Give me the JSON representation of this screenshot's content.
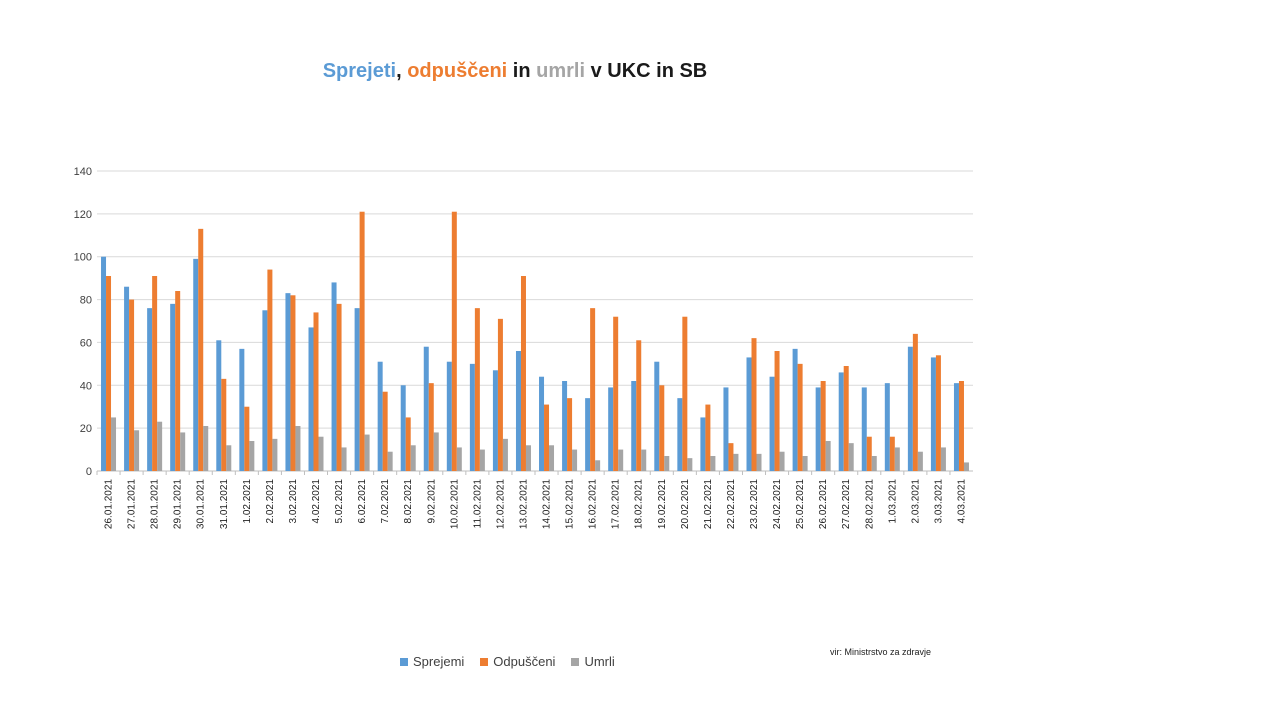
{
  "title": {
    "part1": "Sprejeti",
    "sep1": ", ",
    "part2": "odpuščeni",
    "sep2": " in ",
    "part3": "umrli",
    "sep3": " v UKC in SB"
  },
  "source_note": "vir: Ministrstvo za zdravje",
  "colors": {
    "sprejemi": "#5b9bd5",
    "odpusceni": "#ed7d31",
    "umrli": "#a5a5a5",
    "grid": "#d9d9d9",
    "title_black": "#1a1a1a"
  },
  "chart_data": {
    "type": "bar",
    "ylim": [
      0,
      140
    ],
    "yticks": [
      "0",
      "20",
      "40",
      "60",
      "80",
      "100",
      "120",
      "140"
    ],
    "grid": true,
    "legend_position": "bottom",
    "categories": [
      "26.01.2021",
      "27.01.2021",
      "28.01.2021",
      "29.01.2021",
      "30.01.2021",
      "31.01.2021",
      "1.02.2021",
      "2.02.2021",
      "3.02.2021",
      "4.02.2021",
      "5.02.2021",
      "6.02.2021",
      "7.02.2021",
      "8.02.2021",
      "9.02.2021",
      "10.02.2021",
      "11.02.2021",
      "12.02.2021",
      "13.02.2021",
      "14.02.2021",
      "15.02.2021",
      "16.02.2021",
      "17.02.2021",
      "18.02.2021",
      "19.02.2021",
      "20.02.2021",
      "21.02.2021",
      "22.02.2021",
      "23.02.2021",
      "24.02.2021",
      "25.02.2021",
      "26.02.2021",
      "27.02.2021",
      "28.02.2021",
      "1.03.2021",
      "2.03.2021",
      "3.03.2021",
      "4.03.2021"
    ],
    "series": [
      {
        "name": "Sprejemi",
        "values": [
          100,
          86,
          76,
          78,
          99,
          61,
          57,
          75,
          83,
          67,
          88,
          76,
          51,
          40,
          58,
          51,
          50,
          47,
          56,
          44,
          42,
          34,
          39,
          42,
          51,
          34,
          25,
          39,
          53,
          44,
          57,
          39,
          46,
          39,
          41,
          58,
          53,
          41
        ]
      },
      {
        "name": "Odpuščeni",
        "values": [
          91,
          80,
          91,
          84,
          113,
          43,
          30,
          94,
          82,
          74,
          78,
          121,
          37,
          25,
          41,
          121,
          76,
          71,
          91,
          31,
          34,
          76,
          72,
          61,
          40,
          72,
          31,
          13,
          62,
          56,
          50,
          42,
          49,
          16,
          16,
          64,
          54,
          42
        ]
      },
      {
        "name": "Umrli",
        "values": [
          25,
          19,
          23,
          18,
          21,
          12,
          14,
          15,
          21,
          16,
          11,
          17,
          9,
          12,
          18,
          11,
          10,
          15,
          12,
          12,
          10,
          5,
          10,
          10,
          7,
          6,
          7,
          8,
          8,
          9,
          7,
          14,
          13,
          7,
          11,
          9,
          11,
          4
        ]
      }
    ]
  }
}
